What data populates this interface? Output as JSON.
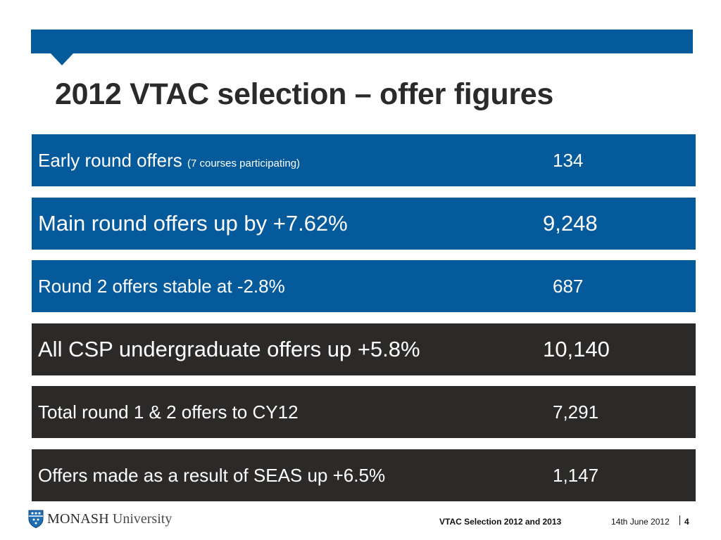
{
  "slide": {
    "title": "2012 VTAC selection – offer figures",
    "colors": {
      "blue": "#045a9a",
      "dark": "#2c2a29"
    }
  },
  "rows": [
    {
      "label": "Early round offers",
      "note": "(7 courses participating)",
      "value": "134"
    },
    {
      "label": "Main round offers up by +7.62%",
      "value": "9,248"
    },
    {
      "label": "Round 2 offers stable at -2.8%",
      "value": "687"
    },
    {
      "label": "All CSP undergraduate offers up +5.8%",
      "value": "10,140"
    },
    {
      "label": "Total round 1 & 2 offers to CY12",
      "value": "7,291"
    },
    {
      "label": "Offers made as a result of SEAS up +6.5%",
      "value": "1,147"
    }
  ],
  "footer": {
    "logo_part1": "MONASH",
    "logo_part2": " University",
    "presentation_title": "VTAC Selection 2012 and 2013",
    "date": "14th June 2012",
    "page_number": "4",
    "logo_icon": "monash-crest-icon"
  }
}
